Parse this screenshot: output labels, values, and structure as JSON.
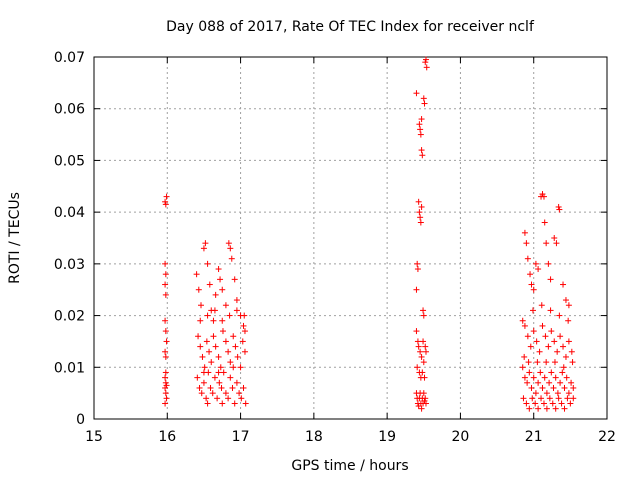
{
  "chart_data": {
    "type": "scatter",
    "title": "Day 088 of 2017, Rate Of TEC Index for receiver nclf",
    "xlabel": "GPS time / hours",
    "ylabel": "ROTI / TECUs",
    "xlim": [
      15,
      22
    ],
    "ylim": [
      0,
      0.07
    ],
    "xticks": [
      "15",
      "16",
      "17",
      "18",
      "19",
      "20",
      "21",
      "22"
    ],
    "yticks": [
      "0",
      "0.01",
      "0.02",
      "0.03",
      "0.04",
      "0.05",
      "0.06",
      "0.07"
    ],
    "grid": true,
    "marker": "+",
    "color": "#ff0000",
    "series": [
      {
        "name": "ROTI",
        "points": [
          [
            15.97,
            0.042
          ],
          [
            15.98,
            0.0415
          ],
          [
            15.99,
            0.043
          ],
          [
            15.97,
            0.03
          ],
          [
            15.98,
            0.028
          ],
          [
            15.97,
            0.026
          ],
          [
            15.98,
            0.024
          ],
          [
            15.97,
            0.019
          ],
          [
            15.98,
            0.017
          ],
          [
            15.99,
            0.015
          ],
          [
            15.97,
            0.013
          ],
          [
            15.98,
            0.012
          ],
          [
            15.97,
            0.008
          ],
          [
            15.98,
            0.007
          ],
          [
            15.97,
            0.006
          ],
          [
            15.98,
            0.005
          ],
          [
            15.99,
            0.004
          ],
          [
            15.97,
            0.003
          ],
          [
            15.98,
            0.009
          ],
          [
            15.99,
            0.0065
          ],
          [
            16.4,
            0.028
          ],
          [
            16.43,
            0.025
          ],
          [
            16.46,
            0.022
          ],
          [
            16.5,
            0.033
          ],
          [
            16.52,
            0.034
          ],
          [
            16.55,
            0.03
          ],
          [
            16.58,
            0.026
          ],
          [
            16.6,
            0.021
          ],
          [
            16.63,
            0.019
          ],
          [
            16.66,
            0.024
          ],
          [
            16.7,
            0.029
          ],
          [
            16.72,
            0.027
          ],
          [
            16.75,
            0.025
          ],
          [
            16.8,
            0.022
          ],
          [
            16.84,
            0.034
          ],
          [
            16.86,
            0.033
          ],
          [
            16.88,
            0.031
          ],
          [
            16.92,
            0.027
          ],
          [
            16.95,
            0.023
          ],
          [
            17.0,
            0.02
          ],
          [
            17.04,
            0.018
          ],
          [
            17.06,
            0.017
          ],
          [
            16.42,
            0.016
          ],
          [
            16.45,
            0.014
          ],
          [
            16.48,
            0.012
          ],
          [
            16.51,
            0.01
          ],
          [
            16.54,
            0.015
          ],
          [
            16.57,
            0.013
          ],
          [
            16.6,
            0.011
          ],
          [
            16.63,
            0.016
          ],
          [
            16.66,
            0.014
          ],
          [
            16.7,
            0.012
          ],
          [
            16.73,
            0.01
          ],
          [
            16.76,
            0.017
          ],
          [
            16.8,
            0.015
          ],
          [
            16.83,
            0.013
          ],
          [
            16.86,
            0.011
          ],
          [
            16.9,
            0.016
          ],
          [
            16.93,
            0.014
          ],
          [
            16.96,
            0.012
          ],
          [
            17.0,
            0.01
          ],
          [
            17.03,
            0.015
          ],
          [
            17.06,
            0.013
          ],
          [
            16.41,
            0.008
          ],
          [
            16.44,
            0.006
          ],
          [
            16.47,
            0.005
          ],
          [
            16.5,
            0.007
          ],
          [
            16.53,
            0.004
          ],
          [
            16.56,
            0.009
          ],
          [
            16.59,
            0.006
          ],
          [
            16.62,
            0.005
          ],
          [
            16.65,
            0.008
          ],
          [
            16.68,
            0.004
          ],
          [
            16.71,
            0.007
          ],
          [
            16.74,
            0.006
          ],
          [
            16.77,
            0.009
          ],
          [
            16.8,
            0.005
          ],
          [
            16.83,
            0.004
          ],
          [
            16.86,
            0.008
          ],
          [
            16.89,
            0.006
          ],
          [
            16.92,
            0.003
          ],
          [
            16.95,
            0.007
          ],
          [
            16.98,
            0.005
          ],
          [
            17.01,
            0.004
          ],
          [
            17.04,
            0.006
          ],
          [
            17.07,
            0.003
          ],
          [
            16.55,
            0.003
          ],
          [
            16.75,
            0.003
          ],
          [
            16.45,
            0.019
          ],
          [
            16.55,
            0.02
          ],
          [
            16.65,
            0.021
          ],
          [
            16.75,
            0.019
          ],
          [
            16.85,
            0.02
          ],
          [
            16.95,
            0.021
          ],
          [
            17.05,
            0.02
          ],
          [
            16.5,
            0.009
          ],
          [
            16.7,
            0.009
          ],
          [
            16.9,
            0.01
          ],
          [
            19.4,
            0.063
          ],
          [
            19.44,
            0.057
          ],
          [
            19.45,
            0.056
          ],
          [
            19.46,
            0.055
          ],
          [
            19.47,
            0.058
          ],
          [
            19.5,
            0.062
          ],
          [
            19.51,
            0.061
          ],
          [
            19.52,
            0.069
          ],
          [
            19.53,
            0.0695
          ],
          [
            19.54,
            0.068
          ],
          [
            19.48,
            0.051
          ],
          [
            19.47,
            0.052
          ],
          [
            19.43,
            0.042
          ],
          [
            19.44,
            0.04
          ],
          [
            19.45,
            0.039
          ],
          [
            19.46,
            0.038
          ],
          [
            19.47,
            0.041
          ],
          [
            19.41,
            0.03
          ],
          [
            19.42,
            0.029
          ],
          [
            19.4,
            0.025
          ],
          [
            19.49,
            0.021
          ],
          [
            19.5,
            0.02
          ],
          [
            19.4,
            0.017
          ],
          [
            19.42,
            0.015
          ],
          [
            19.43,
            0.014
          ],
          [
            19.45,
            0.013
          ],
          [
            19.47,
            0.012
          ],
          [
            19.49,
            0.015
          ],
          [
            19.5,
            0.011
          ],
          [
            19.52,
            0.014
          ],
          [
            19.53,
            0.013
          ],
          [
            19.41,
            0.01
          ],
          [
            19.44,
            0.009
          ],
          [
            19.46,
            0.008
          ],
          [
            19.48,
            0.009
          ],
          [
            19.51,
            0.008
          ],
          [
            19.4,
            0.005
          ],
          [
            19.41,
            0.004
          ],
          [
            19.42,
            0.003
          ],
          [
            19.43,
            0.0025
          ],
          [
            19.44,
            0.004
          ],
          [
            19.45,
            0.005
          ],
          [
            19.46,
            0.003
          ],
          [
            19.47,
            0.002
          ],
          [
            19.48,
            0.004
          ],
          [
            19.49,
            0.003
          ],
          [
            19.5,
            0.005
          ],
          [
            19.51,
            0.0035
          ],
          [
            19.52,
            0.004
          ],
          [
            19.53,
            0.003
          ],
          [
            20.88,
            0.036
          ],
          [
            20.9,
            0.034
          ],
          [
            20.92,
            0.031
          ],
          [
            20.95,
            0.028
          ],
          [
            20.97,
            0.026
          ],
          [
            21.0,
            0.025
          ],
          [
            21.03,
            0.03
          ],
          [
            21.06,
            0.029
          ],
          [
            21.1,
            0.043
          ],
          [
            21.12,
            0.0435
          ],
          [
            21.14,
            0.043
          ],
          [
            21.15,
            0.038
          ],
          [
            21.17,
            0.034
          ],
          [
            21.2,
            0.03
          ],
          [
            21.23,
            0.027
          ],
          [
            21.28,
            0.035
          ],
          [
            21.31,
            0.034
          ],
          [
            21.34,
            0.041
          ],
          [
            21.35,
            0.0405
          ],
          [
            21.4,
            0.026
          ],
          [
            21.44,
            0.023
          ],
          [
            21.48,
            0.022
          ],
          [
            20.85,
            0.019
          ],
          [
            20.88,
            0.018
          ],
          [
            20.92,
            0.016
          ],
          [
            20.96,
            0.014
          ],
          [
            21.0,
            0.017
          ],
          [
            21.04,
            0.015
          ],
          [
            21.08,
            0.013
          ],
          [
            21.12,
            0.018
          ],
          [
            21.16,
            0.016
          ],
          [
            21.2,
            0.014
          ],
          [
            21.24,
            0.017
          ],
          [
            21.28,
            0.015
          ],
          [
            21.32,
            0.013
          ],
          [
            21.36,
            0.016
          ],
          [
            21.4,
            0.014
          ],
          [
            21.44,
            0.012
          ],
          [
            21.48,
            0.015
          ],
          [
            21.52,
            0.013
          ],
          [
            20.85,
            0.01
          ],
          [
            20.88,
            0.008
          ],
          [
            20.91,
            0.007
          ],
          [
            20.94,
            0.009
          ],
          [
            20.97,
            0.006
          ],
          [
            21.0,
            0.008
          ],
          [
            21.03,
            0.005
          ],
          [
            21.06,
            0.007
          ],
          [
            21.09,
            0.009
          ],
          [
            21.12,
            0.006
          ],
          [
            21.15,
            0.008
          ],
          [
            21.18,
            0.005
          ],
          [
            21.21,
            0.007
          ],
          [
            21.24,
            0.009
          ],
          [
            21.27,
            0.006
          ],
          [
            21.3,
            0.008
          ],
          [
            21.33,
            0.005
          ],
          [
            21.36,
            0.007
          ],
          [
            21.39,
            0.009
          ],
          [
            21.42,
            0.006
          ],
          [
            21.45,
            0.008
          ],
          [
            21.48,
            0.005
          ],
          [
            21.51,
            0.007
          ],
          [
            21.54,
            0.006
          ],
          [
            20.86,
            0.004
          ],
          [
            20.9,
            0.003
          ],
          [
            20.94,
            0.002
          ],
          [
            20.98,
            0.004
          ],
          [
            21.02,
            0.003
          ],
          [
            21.06,
            0.002
          ],
          [
            21.1,
            0.004
          ],
          [
            21.14,
            0.003
          ],
          [
            21.18,
            0.002
          ],
          [
            21.22,
            0.004
          ],
          [
            21.26,
            0.003
          ],
          [
            21.3,
            0.002
          ],
          [
            21.34,
            0.004
          ],
          [
            21.38,
            0.003
          ],
          [
            21.42,
            0.002
          ],
          [
            21.46,
            0.004
          ],
          [
            21.5,
            0.003
          ],
          [
            21.54,
            0.004
          ],
          [
            20.87,
            0.012
          ],
          [
            20.93,
            0.011
          ],
          [
            21.05,
            0.011
          ],
          [
            21.17,
            0.011
          ],
          [
            21.29,
            0.011
          ],
          [
            21.41,
            0.01
          ],
          [
            21.53,
            0.011
          ],
          [
            20.99,
            0.021
          ],
          [
            21.11,
            0.022
          ],
          [
            21.23,
            0.021
          ],
          [
            21.35,
            0.02
          ],
          [
            21.47,
            0.019
          ]
        ]
      }
    ]
  }
}
